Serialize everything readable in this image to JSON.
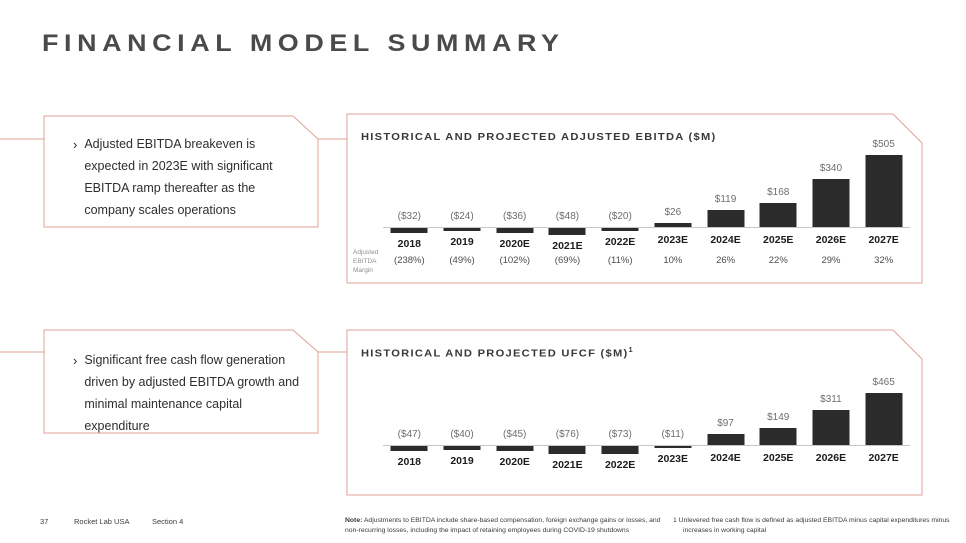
{
  "colors": {
    "accent": "#e0a296",
    "bar": "#2b2b2b",
    "axis": "#c6c6c6",
    "title_text": "#4a4a4a",
    "value_label": "#6e6e6e",
    "year_label": "#1c1c1c"
  },
  "slide": {
    "title": "FINANCIAL MODEL SUMMARY",
    "footer": {
      "page_number": "37",
      "company": "Rocket Lab USA",
      "section": "Section 4"
    },
    "notes": {
      "note_label": "Note:",
      "note_body": " Adjustments to EBITDA include share-based compensation, foreign exchange gains or losses, and non-recurring losses, including the impact of retaining employees during COVID-19 shutdowns",
      "footnote": "1 Unlevered free cash flow is defined as adjusted EBITDA minus capital expenditures minus increases in working capital"
    }
  },
  "callouts": [
    {
      "bullet": "›",
      "text": "Adjusted EBITDA breakeven is expected in 2023E with significant EBITDA ramp thereafter as the company scales operations"
    },
    {
      "bullet": "›",
      "text": "Significant free cash flow generation driven by adjusted EBITDA growth and minimal maintenance capital expenditure"
    }
  ],
  "chart_data": [
    {
      "type": "bar",
      "title": "HISTORICAL AND PROJECTED ADJUSTED EBITDA ($M)",
      "categories": [
        "2018",
        "2019",
        "2020E",
        "2021E",
        "2022E",
        "2023E",
        "2024E",
        "2025E",
        "2026E",
        "2027E"
      ],
      "values": [
        -32,
        -24,
        -36,
        -48,
        -20,
        26,
        119,
        168,
        340,
        505
      ],
      "value_labels": [
        "($32)",
        "($24)",
        "($36)",
        "($48)",
        "($20)",
        "$26",
        "$119",
        "$168",
        "$340",
        "$505"
      ],
      "margin_row": {
        "label": "Adjusted EBITDA Margin",
        "values": [
          "(238%)",
          "(49%)",
          "(102%)",
          "(69%)",
          "(11%)",
          "10%",
          "26%",
          "22%",
          "29%",
          "32%"
        ]
      },
      "ylim": [
        -60,
        520
      ],
      "grid": false,
      "legend": null,
      "bar_color": "#2b2b2b"
    },
    {
      "type": "bar",
      "title": "HISTORICAL AND PROJECTED UFCF ($M)",
      "title_superscript": "1",
      "categories": [
        "2018",
        "2019",
        "2020E",
        "2021E",
        "2022E",
        "2023E",
        "2024E",
        "2025E",
        "2026E",
        "2027E"
      ],
      "values": [
        -47,
        -40,
        -45,
        -76,
        -73,
        -11,
        97,
        149,
        311,
        465
      ],
      "value_labels": [
        "($47)",
        "($40)",
        "($45)",
        "($76)",
        "($73)",
        "($11)",
        "$97",
        "$149",
        "$311",
        "$465"
      ],
      "ylim": [
        -100,
        480
      ],
      "grid": false,
      "legend": null,
      "bar_color": "#2b2b2b"
    }
  ]
}
